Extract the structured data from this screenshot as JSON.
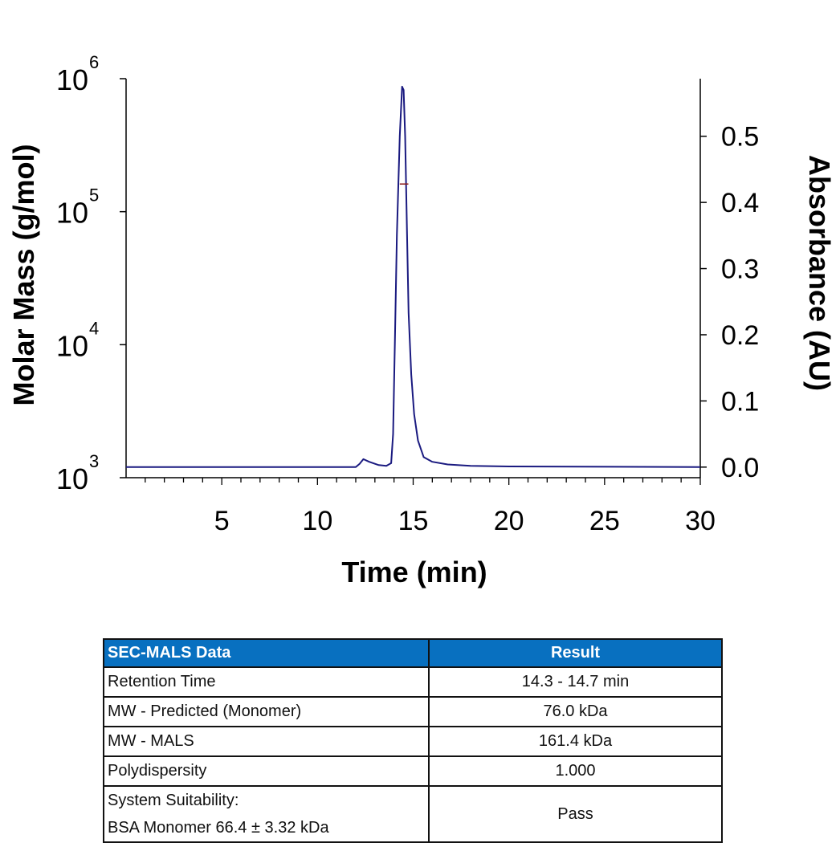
{
  "chart_data": {
    "type": "line",
    "xlabel": "Time (min)",
    "ylabel_left": "Molar Mass (g/mol)",
    "ylabel_right": "Absorbance (AU)",
    "xlim": [
      0,
      30
    ],
    "xticks": [
      5,
      10,
      15,
      20,
      25,
      30
    ],
    "ylim_left": [
      1000,
      1000000
    ],
    "yscale_left": "log",
    "yticks_left": [
      {
        "base": "10",
        "exp": "3"
      },
      {
        "base": "10",
        "exp": "4"
      },
      {
        "base": "10",
        "exp": "5"
      },
      {
        "base": "10",
        "exp": "6"
      }
    ],
    "ylim_right": [
      -0.016,
      0.587
    ],
    "yticks_right": [
      "0.0",
      "0.1",
      "0.2",
      "0.3",
      "0.4",
      "0.5"
    ],
    "grid": false,
    "series": [
      {
        "axis": "right",
        "color": "#1a1a80",
        "x": [
          0,
          12.0,
          12.2,
          12.4,
          12.7,
          13.2,
          13.6,
          13.85,
          13.95,
          14.05,
          14.15,
          14.3,
          14.42,
          14.5,
          14.58,
          14.68,
          14.76,
          14.9,
          15.05,
          15.25,
          15.55,
          16.0,
          16.8,
          18,
          20,
          30
        ],
        "y": [
          0,
          0,
          0.005,
          0.012,
          0.008,
          0.003,
          0.002,
          0.006,
          0.05,
          0.2,
          0.35,
          0.5,
          0.575,
          0.57,
          0.5,
          0.35,
          0.233,
          0.14,
          0.08,
          0.04,
          0.015,
          0.008,
          0.004,
          0.002,
          0.001,
          0
        ]
      },
      {
        "axis": "left",
        "color": "#8b1a1a",
        "x": [
          14.3,
          14.5,
          14.75
        ],
        "y": [
          161400,
          161400,
          161400
        ]
      }
    ]
  },
  "table": {
    "headers": [
      "SEC-MALS Data",
      "Result"
    ],
    "rows": [
      [
        "Retention Time",
        "14.3 - 14.7 min"
      ],
      [
        "MW - Predicted (Monomer)",
        "76.0 kDa"
      ],
      [
        "MW - MALS",
        "161.4 kDa"
      ],
      [
        "Polydispersity",
        "1.000"
      ]
    ],
    "last_row": {
      "label_line1": "System Suitability:",
      "label_line2": "BSA Monomer 66.4 ± 3.32 kDa",
      "value": "Pass"
    }
  }
}
